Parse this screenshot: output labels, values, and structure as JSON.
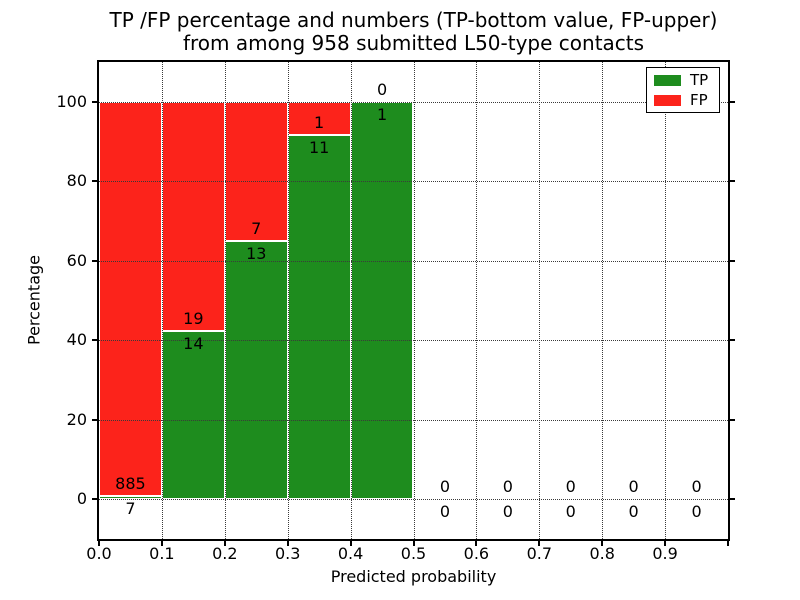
{
  "title": {
    "line1": "TP /FP percentage and numbers (TP-bottom value, FP-upper)",
    "line2": "from among 958 submitted L50-type contacts"
  },
  "chart_data": {
    "type": "bar",
    "stacked": true,
    "title": "TP /FP percentage and numbers (TP-bottom value, FP-upper) from among 958 submitted L50-type contacts",
    "xlabel": "Predicted probability",
    "ylabel": "Percentage",
    "total_contacts": 958,
    "annotation_rule": "TP-bottom value, FP-upper",
    "x_ticks": [
      "0.0",
      "0.1",
      "0.2",
      "0.3",
      "0.4",
      "0.5",
      "0.6",
      "0.7",
      "0.8",
      "0.9"
    ],
    "y_ticks": [
      0,
      20,
      40,
      60,
      80,
      100
    ],
    "xlim": [
      0.0,
      1.0
    ],
    "ylim": [
      -10,
      110
    ],
    "grid": "dotted",
    "legend_position": "upper right",
    "bins": [
      {
        "x_start": 0.0,
        "x_end": 0.1,
        "tp": 7,
        "fp": 885
      },
      {
        "x_start": 0.1,
        "x_end": 0.2,
        "tp": 14,
        "fp": 19
      },
      {
        "x_start": 0.2,
        "x_end": 0.3,
        "tp": 13,
        "fp": 7
      },
      {
        "x_start": 0.3,
        "x_end": 0.4,
        "tp": 11,
        "fp": 1
      },
      {
        "x_start": 0.4,
        "x_end": 0.5,
        "tp": 1,
        "fp": 0
      },
      {
        "x_start": 0.5,
        "x_end": 0.6,
        "tp": 0,
        "fp": 0
      },
      {
        "x_start": 0.6,
        "x_end": 0.7,
        "tp": 0,
        "fp": 0
      },
      {
        "x_start": 0.7,
        "x_end": 0.8,
        "tp": 0,
        "fp": 0
      },
      {
        "x_start": 0.8,
        "x_end": 0.9,
        "tp": 0,
        "fp": 0
      },
      {
        "x_start": 0.9,
        "x_end": 1.0,
        "tp": 0,
        "fp": 0
      }
    ],
    "legend": [
      {
        "label": "TP",
        "color": "#1e8c1e"
      },
      {
        "label": "FP",
        "color": "#fc231b"
      }
    ]
  },
  "colors": {
    "tp": "#1e8c1e",
    "fp": "#fc231b",
    "bar_edge": "#ffffff",
    "grid": "#3a3a3a",
    "spine": "#000000",
    "text": "#000000",
    "background": "#ffffff"
  }
}
